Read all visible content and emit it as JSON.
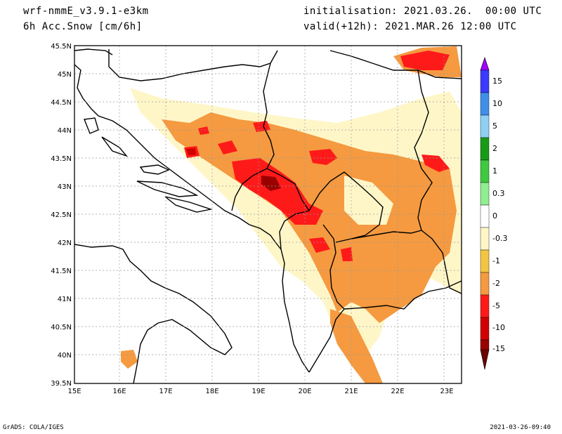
{
  "header": {
    "model": "wrf-nmmE_v3.9.1-e3km",
    "field": "6h Acc.Snow [cm/6h]",
    "init": "initialisation: 2021.03.26.  00:00 UTC",
    "valid": "valid(+12h): 2021.MAR.26 12:00 UTC"
  },
  "axes": {
    "lat_labels": [
      "45.5N",
      "45N",
      "44.5N",
      "44N",
      "43.5N",
      "43N",
      "42.5N",
      "42N",
      "41.5N",
      "41N",
      "40.5N",
      "40N",
      "39.5N"
    ],
    "lon_labels": [
      "15E",
      "16E",
      "17E",
      "18E",
      "19E",
      "20E",
      "21E",
      "22E",
      "23E"
    ]
  },
  "colorbar": {
    "labels": [
      "15",
      "10",
      "5",
      "2",
      "1",
      "0.3",
      "0",
      "-0.3",
      "-1",
      "-2",
      "-5",
      "-10",
      "-15"
    ],
    "colors": [
      "#9f00ff",
      "#3b3bff",
      "#3f8fe8",
      "#8fcff5",
      "#179b17",
      "#3ec93e",
      "#90ee90",
      "#ffffff",
      "#fff6c8",
      "#f4c542",
      "#f59a40",
      "#ff1a1a",
      "#d20000",
      "#9a0000",
      "#6e0000"
    ]
  },
  "footer": {
    "left": "GrADS: COLA/IGES",
    "right": "2021-03-26-09:40"
  }
}
